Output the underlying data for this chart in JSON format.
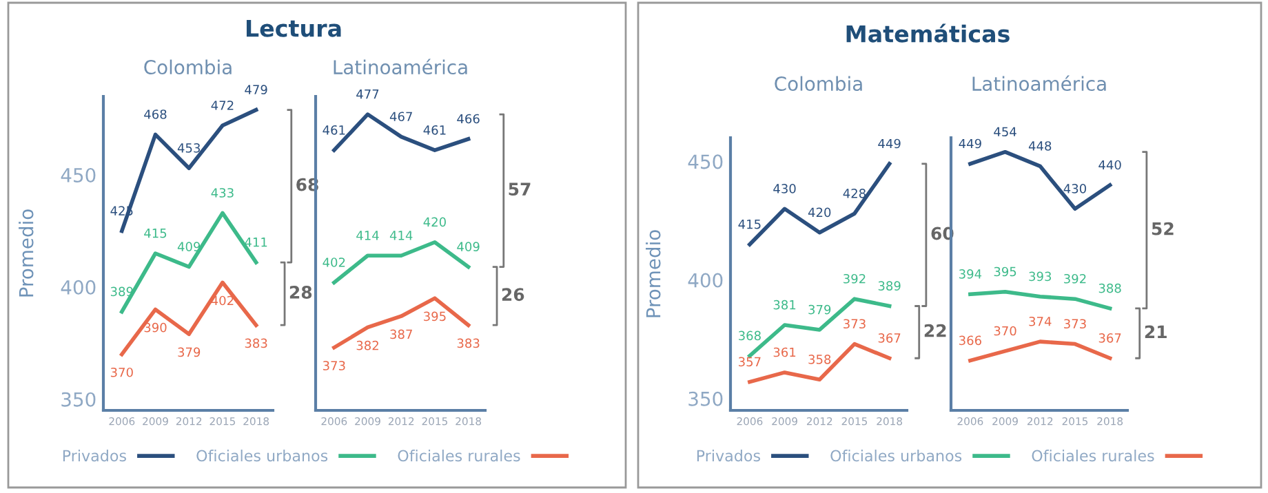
{
  "chart_data": [
    {
      "type": "line",
      "title": "Lectura",
      "subtitle": "Colombia",
      "ylabel": "Promedio",
      "categories": [
        "2006",
        "2009",
        "2012",
        "2015",
        "2018"
      ],
      "ylim": [
        345,
        485
      ],
      "yticks": [
        350,
        400,
        450
      ],
      "tick_labels": "xy",
      "data_labels": true,
      "legend": "bottom",
      "annotations": [
        "68",
        "28"
      ],
      "series": [
        {
          "name": "Privados",
          "color": "#2b4f7e",
          "values": [
            425,
            468,
            453,
            472,
            479
          ]
        },
        {
          "name": "Oficiales urbanos",
          "color": "#3dba8a",
          "values": [
            389,
            415,
            409,
            433,
            411
          ]
        },
        {
          "name": "Oficiales rurales",
          "color": "#e8684a",
          "values": [
            370,
            390,
            379,
            402,
            383
          ]
        }
      ]
    },
    {
      "type": "line",
      "subtitle": "Latinoamérica",
      "categories": [
        "2006",
        "2009",
        "2012",
        "2015",
        "2018"
      ],
      "ylim": [
        345,
        485
      ],
      "tick_labels": "x",
      "data_labels": true,
      "annotations": [
        "57",
        "26"
      ],
      "series": [
        {
          "color": "#2b4f7e",
          "values": [
            461,
            477,
            467,
            461,
            466
          ]
        },
        {
          "color": "#3dba8a",
          "values": [
            402,
            414,
            414,
            420,
            409
          ]
        },
        {
          "color": "#e8684a",
          "values": [
            373,
            382,
            387,
            395,
            383
          ]
        }
      ]
    },
    {
      "type": "line",
      "title": "Matemáticas",
      "subtitle": "Colombia",
      "ylabel": "Promedio",
      "categories": [
        "2006",
        "2009",
        "2012",
        "2015",
        "2018"
      ],
      "ylim": [
        345,
        460
      ],
      "yticks": [
        350,
        400,
        450
      ],
      "tick_labels": "xy",
      "data_labels": true,
      "legend": "bottom",
      "annotations": [
        "60",
        "22"
      ],
      "series": [
        {
          "name": "Privados",
          "color": "#2b4f7e",
          "values": [
            415,
            430,
            420,
            428,
            449
          ]
        },
        {
          "name": "Oficiales urbanos",
          "color": "#3dba8a",
          "values": [
            368,
            381,
            379,
            392,
            389
          ]
        },
        {
          "name": "Oficiales rurales",
          "color": "#e8684a",
          "values": [
            357,
            361,
            358,
            373,
            367
          ]
        }
      ]
    },
    {
      "type": "line",
      "subtitle": "Latinoamérica",
      "categories": [
        "2006",
        "2009",
        "2012",
        "2015",
        "2018"
      ],
      "ylim": [
        345,
        460
      ],
      "tick_labels": "x",
      "data_labels": true,
      "annotations": [
        "52",
        "21"
      ],
      "series": [
        {
          "color": "#2b4f7e",
          "values": [
            449,
            454,
            448,
            430,
            440
          ]
        },
        {
          "color": "#3dba8a",
          "values": [
            394,
            395,
            393,
            392,
            388
          ]
        },
        {
          "color": "#e8684a",
          "values": [
            366,
            370,
            374,
            373,
            367
          ]
        }
      ]
    }
  ]
}
